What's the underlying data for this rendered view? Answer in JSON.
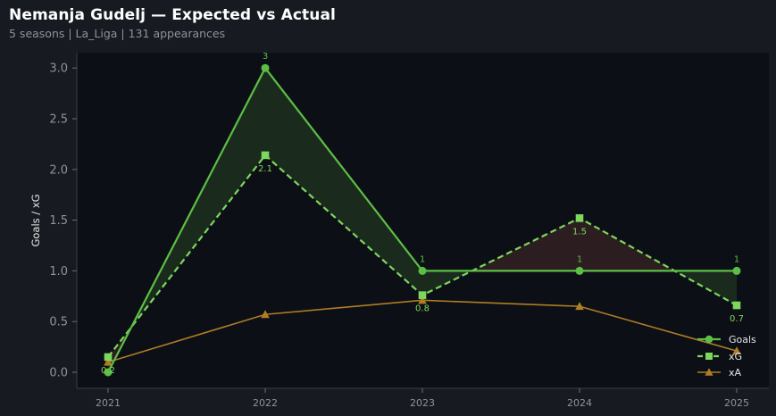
{
  "header": {
    "title": "Nemanja Gudelj — Expected vs Actual",
    "subtitle": "5 seasons | La_Liga | 131 appearances"
  },
  "chart_data": {
    "type": "line",
    "title": "Nemanja Gudelj — Expected vs Actual",
    "subtitle": "5 seasons | La_Liga | 131 appearances",
    "xlabel": "",
    "ylabel": "Goals / xG",
    "categories": [
      "2021",
      "2022",
      "2023",
      "2024",
      "2025"
    ],
    "ylim": [
      -0.15,
      3.15
    ],
    "yticks": [
      "0.0",
      "0.5",
      "1.0",
      "1.5",
      "2.0",
      "2.5",
      "3.0"
    ],
    "grid": false,
    "legend_position": "bottom-right",
    "series": [
      {
        "name": "Goals",
        "values": [
          0,
          3,
          1,
          1,
          1
        ],
        "color": "#5cbf45",
        "marker": "circle",
        "style": "solid",
        "labels": [
          "",
          "3",
          "1",
          "1",
          "1"
        ]
      },
      {
        "name": "xG",
        "values": [
          0.15,
          2.14,
          0.76,
          1.52,
          0.66
        ],
        "color": "#7dd65e",
        "marker": "square",
        "style": "dashed",
        "labels": [
          "0.2",
          "2.1",
          "0.8",
          "1.5",
          "0.7"
        ]
      },
      {
        "name": "xA",
        "values": [
          0.1,
          0.57,
          0.71,
          0.65,
          0.21
        ],
        "color": "#b07d25",
        "marker": "triangle",
        "style": "solid",
        "labels": []
      }
    ],
    "fill_colors": {
      "over": "#1a2b1e",
      "under": "#2c1d21"
    }
  }
}
